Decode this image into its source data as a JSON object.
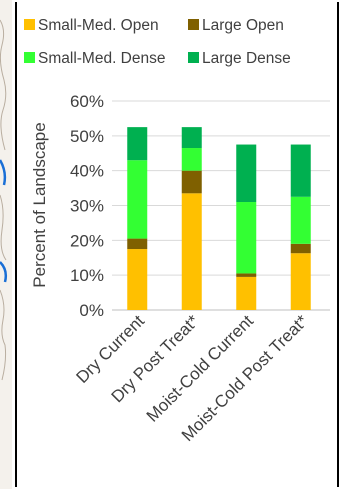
{
  "chart_data": {
    "type": "stacked-bar",
    "categories": [
      "Dry Current",
      "Dry Post Treat*",
      "Moist-Cold Current",
      "Moist-Cold Post Treat*"
    ],
    "series": [
      {
        "name": "Small-Med. Open",
        "color": "#FFC000",
        "values": [
          17.5,
          33.5,
          9.5,
          16.3
        ]
      },
      {
        "name": "Large Open",
        "color": "#7F6000",
        "values": [
          3.0,
          6.5,
          1.0,
          2.7
        ]
      },
      {
        "name": "Small-Med. Dense",
        "color": "#33FF33",
        "values": [
          22.5,
          6.5,
          20.5,
          13.5
        ]
      },
      {
        "name": "Large Dense",
        "color": "#00B050",
        "values": [
          9.5,
          6.0,
          16.5,
          15.0
        ]
      }
    ],
    "ylabel": "Percent of Landscape",
    "ylim": [
      0,
      60
    ],
    "yticks": [
      "0%",
      "10%",
      "20%",
      "30%",
      "40%",
      "50%",
      "60%"
    ],
    "grid": true,
    "legend": "top"
  }
}
